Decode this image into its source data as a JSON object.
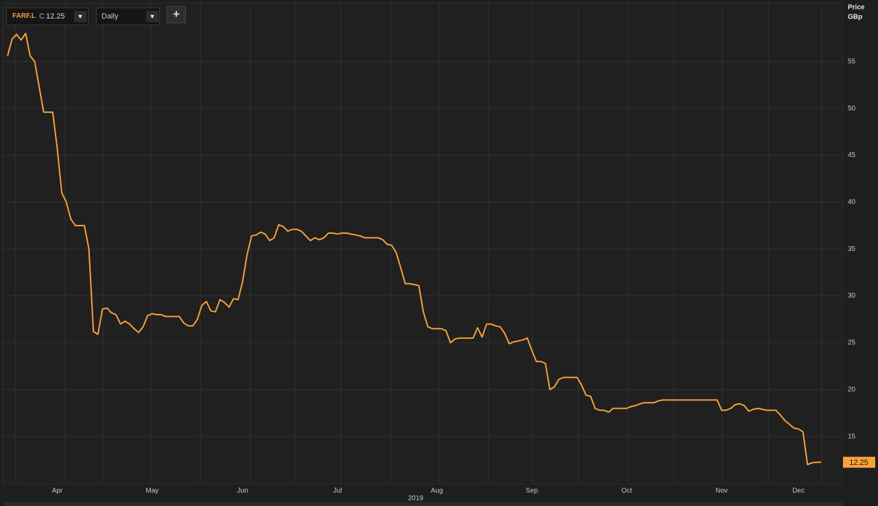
{
  "toolbar": {
    "symbol": "FARF.L",
    "close_prefix": "C",
    "interval": "Daily"
  },
  "chart_data": {
    "type": "line",
    "ylabel": "Price",
    "yunit": "GBp",
    "year_label": "2019",
    "color": "#f7a23a",
    "grid": true,
    "ylim": [
      10,
      61.2
    ],
    "yticks": [
      15,
      20,
      25,
      30,
      35,
      40,
      45,
      50,
      55
    ],
    "categories": [
      null,
      null,
      null,
      null,
      null,
      null,
      null,
      null,
      null,
      null,
      null,
      "Apr",
      null,
      null,
      null,
      null,
      null,
      null,
      null,
      null,
      null,
      null,
      null,
      null,
      null,
      null,
      null,
      null,
      null,
      null,
      null,
      null,
      "May",
      null,
      null,
      null,
      null,
      null,
      null,
      null,
      null,
      null,
      null,
      null,
      null,
      null,
      null,
      null,
      null,
      null,
      null,
      null,
      "Jun",
      null,
      null,
      null,
      null,
      null,
      null,
      null,
      null,
      null,
      null,
      null,
      null,
      null,
      null,
      null,
      null,
      null,
      null,
      null,
      null,
      "Jul",
      null,
      null,
      null,
      null,
      null,
      null,
      null,
      null,
      null,
      null,
      null,
      null,
      null,
      null,
      null,
      null,
      null,
      null,
      null,
      null,
      null,
      "Aug",
      null,
      null,
      null,
      null,
      null,
      null,
      null,
      null,
      null,
      null,
      null,
      null,
      null,
      null,
      null,
      null,
      null,
      null,
      null,
      null,
      "Sep",
      null,
      null,
      null,
      null,
      null,
      null,
      null,
      null,
      null,
      null,
      null,
      null,
      null,
      null,
      null,
      null,
      null,
      null,
      null,
      null,
      "Oct",
      null,
      null,
      null,
      null,
      null,
      null,
      null,
      null,
      null,
      null,
      null,
      null,
      null,
      null,
      null,
      null,
      null,
      null,
      null,
      null,
      "Nov",
      null,
      null,
      null,
      null,
      null,
      null,
      null,
      null,
      null,
      null,
      null,
      null,
      null,
      null,
      null,
      null,
      "Dec",
      null,
      null,
      null,
      null,
      null
    ],
    "values": [
      55.6,
      57.4,
      57.9,
      57.3,
      58.0,
      55.6,
      55.0,
      52.3,
      49.6,
      49.6,
      49.6,
      45.7,
      41.0,
      40.0,
      38.2,
      37.5,
      37.5,
      37.5,
      35.0,
      26.2,
      25.9,
      28.6,
      28.7,
      28.2,
      28.0,
      27.0,
      27.3,
      27.0,
      26.5,
      26.1,
      26.7,
      27.9,
      28.1,
      28.0,
      28.0,
      27.8,
      27.8,
      27.8,
      27.8,
      27.1,
      26.8,
      26.8,
      27.5,
      29.0,
      29.4,
      28.4,
      28.3,
      29.6,
      29.3,
      28.8,
      29.7,
      29.6,
      31.5,
      34.4,
      36.4,
      36.5,
      36.8,
      36.6,
      35.9,
      36.2,
      37.6,
      37.4,
      36.9,
      37.1,
      37.1,
      36.9,
      36.4,
      35.9,
      36.2,
      36.0,
      36.2,
      36.7,
      36.7,
      36.6,
      36.7,
      36.7,
      36.6,
      36.5,
      36.4,
      36.2,
      36.2,
      36.2,
      36.2,
      36.0,
      35.5,
      35.4,
      34.6,
      33.0,
      31.3,
      31.3,
      31.2,
      31.1,
      28.3,
      26.7,
      26.5,
      26.5,
      26.5,
      26.3,
      25.0,
      25.4,
      25.5,
      25.5,
      25.5,
      25.5,
      26.6,
      25.6,
      27.0,
      27.0,
      26.8,
      26.7,
      26.0,
      24.9,
      25.1,
      25.2,
      25.3,
      25.5,
      24.2,
      23.0,
      23.0,
      22.8,
      20.0,
      20.3,
      21.1,
      21.3,
      21.3,
      21.3,
      21.3,
      20.5,
      19.4,
      19.3,
      18.0,
      17.8,
      17.8,
      17.6,
      18.0,
      18.0,
      18.0,
      18.0,
      18.2,
      18.3,
      18.5,
      18.6,
      18.6,
      18.6,
      18.8,
      18.9,
      18.9,
      18.9,
      18.9,
      18.9,
      18.9,
      18.9,
      18.9,
      18.9,
      18.9,
      18.9,
      18.9,
      18.9,
      17.8,
      17.8,
      18.0,
      18.4,
      18.5,
      18.3,
      17.7,
      17.9,
      18.0,
      17.9,
      17.8,
      17.8,
      17.8,
      17.3,
      16.7,
      16.3,
      15.9,
      15.8,
      15.5,
      12.0,
      12.2,
      12.25,
      12.25
    ]
  }
}
